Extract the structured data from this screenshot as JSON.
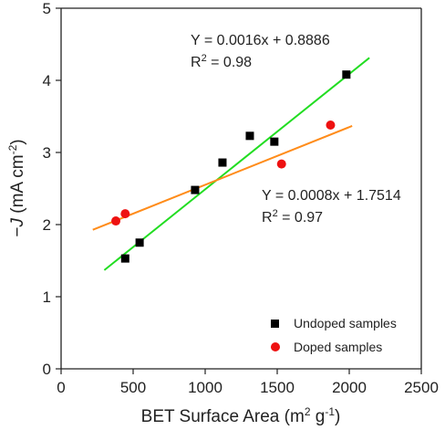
{
  "chart_data": {
    "type": "scatter",
    "title": "",
    "xlabel": "BET Surface Area (m² g⁻¹)",
    "ylabel": "−J (mA cm⁻²)",
    "xlim": [
      0,
      2500
    ],
    "ylim": [
      0,
      5
    ],
    "x_ticks": [
      "0",
      "500",
      "1000",
      "1500",
      "2000",
      "2500"
    ],
    "y_ticks": [
      "0",
      "1",
      "2",
      "3",
      "4",
      "5"
    ],
    "grid": false,
    "legend_position": "bottom-right",
    "series": [
      {
        "name": "Undoped samples",
        "marker": "square",
        "color": "#000000",
        "x": [
          445,
          545,
          930,
          1120,
          1310,
          1480,
          1980
        ],
        "y": [
          1.53,
          1.75,
          2.48,
          2.86,
          3.23,
          3.15,
          4.08
        ]
      },
      {
        "name": "Doped samples",
        "marker": "circle",
        "color": "#ee1111",
        "x": [
          380,
          445,
          1530,
          1870
        ],
        "y": [
          2.05,
          2.15,
          2.84,
          3.38
        ]
      }
    ],
    "fits": [
      {
        "series": "Undoped samples",
        "color": "#22dd22",
        "slope": 0.0016,
        "intercept": 0.8886,
        "x_range": [
          300,
          2140
        ],
        "equation": "Y = 0.0016x + 0.8886",
        "r2_label": "R",
        "r2_value": " = 0.98"
      },
      {
        "series": "Doped samples",
        "color": "#ff8c1a",
        "slope": 0.0008,
        "intercept": 1.7514,
        "x_range": [
          220,
          2020
        ],
        "equation": "Y = 0.0008x + 1.7514",
        "r2_label": "R",
        "r2_value": " = 0.97"
      }
    ]
  }
}
